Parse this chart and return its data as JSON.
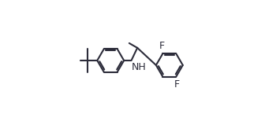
{
  "bg": "#ffffff",
  "lc": "#2c2c3a",
  "lw": 1.5,
  "fs": 9,
  "xlim": [
    0.0,
    1.0
  ],
  "ylim": [
    0.05,
    0.95
  ]
}
